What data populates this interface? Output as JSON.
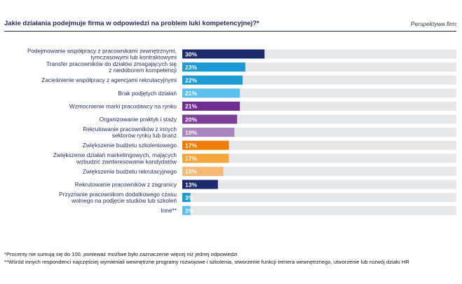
{
  "title": "Jakie działania podejmuje firma w odpowiedzi na problem luki kompetencyjnej?*",
  "perspective": "Perspektywa firm",
  "footnotes": [
    "*Procenty nie sumują się do 100, ponieważ możliwe było zaznaczenie więcej niż jednej odpowiedzi",
    "**Wśród innych respondenci najczęściej wymieniali wewnętrzne programy rozwojowe i szkolenia, stworzenie funkcji trenera wewnętrznego, utworzenie lub rozwój działu HR"
  ],
  "colors": {
    "track": "#e6e7e8",
    "value_text": "#ffffff"
  },
  "chart_data": {
    "type": "bar",
    "orientation": "horizontal",
    "xlim": [
      0,
      100
    ],
    "grid": false,
    "legend": "none",
    "categories": [
      [
        "Podejmowanie współpracy z pracownikami zewnętrznymi,",
        "tymczasowymi lub kontraktowymi"
      ],
      [
        "Transfer pracowników do działów zmagających się",
        "z niedoborem kompetencji"
      ],
      [
        "Zacieśnienie współpracy z agencjami rekrutacyjnymi"
      ],
      [
        "Brak podjętych działań"
      ],
      [
        "Wzmocnienie marki pracodawcy na rynku"
      ],
      [
        "Organizowanie praktyk i staży"
      ],
      [
        "Rekrutowanie pracowników z innych",
        "sektorów rynku lub branż"
      ],
      [
        "Zwiększenie budżetu szkoleniowego"
      ],
      [
        "Zwiększenie działań marketingowych, mających",
        "wzbudzić zainteresowanie kandydatów"
      ],
      [
        "Zwiększenie budżetu rekrutacyjnego"
      ],
      [
        "Rekrutowanie pracowników z zagranicy"
      ],
      [
        "Przyznanie pracownikom dodatkowego czasu",
        "wolnego na podjęcie studiów lub szkoleń"
      ],
      [
        "Inne**"
      ]
    ],
    "values": [
      30,
      23,
      22,
      21,
      21,
      20,
      19,
      17,
      17,
      15,
      13,
      3,
      3
    ],
    "labels": [
      "30%",
      "23%",
      "22%",
      "21%",
      "21%",
      "20%",
      "19%",
      "17%",
      "17%",
      "15%",
      "13%",
      "3%",
      "3%"
    ],
    "bar_colors": [
      "#1b2a6b",
      "#1c9ad6",
      "#1c9ad6",
      "#5cc0ec",
      "#6f2c91",
      "#7e3f98",
      "#a985c0",
      "#ef7d00",
      "#f5a63a",
      "#f6b973",
      "#1b2a6b",
      "#1c9ad6",
      "#5cc0ec"
    ]
  }
}
